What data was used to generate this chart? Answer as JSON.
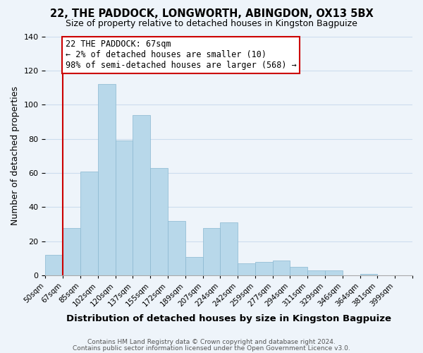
{
  "title": "22, THE PADDOCK, LONGWORTH, ABINGDON, OX13 5BX",
  "subtitle": "Size of property relative to detached houses in Kingston Bagpuize",
  "xlabel": "Distribution of detached houses by size in Kingston Bagpuize",
  "ylabel": "Number of detached properties",
  "footer1": "Contains HM Land Registry data © Crown copyright and database right 2024.",
  "footer2": "Contains public sector information licensed under the Open Government Licence v3.0.",
  "bin_labels": [
    "50sqm",
    "67sqm",
    "85sqm",
    "102sqm",
    "120sqm",
    "137sqm",
    "155sqm",
    "172sqm",
    "189sqm",
    "207sqm",
    "224sqm",
    "242sqm",
    "259sqm",
    "277sqm",
    "294sqm",
    "311sqm",
    "329sqm",
    "346sqm",
    "364sqm",
    "381sqm",
    "399sqm"
  ],
  "bar_heights": [
    12,
    28,
    61,
    112,
    79,
    94,
    63,
    32,
    11,
    28,
    31,
    7,
    8,
    9,
    5,
    3,
    3,
    0,
    1,
    0,
    0
  ],
  "bar_color": "#b8d8ea",
  "highlight_line_color": "#cc0000",
  "ylim": [
    0,
    140
  ],
  "yticks": [
    0,
    20,
    40,
    60,
    80,
    100,
    120,
    140
  ],
  "annotation_line1": "22 THE PADDOCK: 67sqm",
  "annotation_line2": "← 2% of detached houses are smaller (10)",
  "annotation_line3": "98% of semi-detached houses are larger (568) →",
  "annotation_box_color": "#cc0000",
  "grid_color": "#ccddee",
  "background_color": "#eef4fa"
}
